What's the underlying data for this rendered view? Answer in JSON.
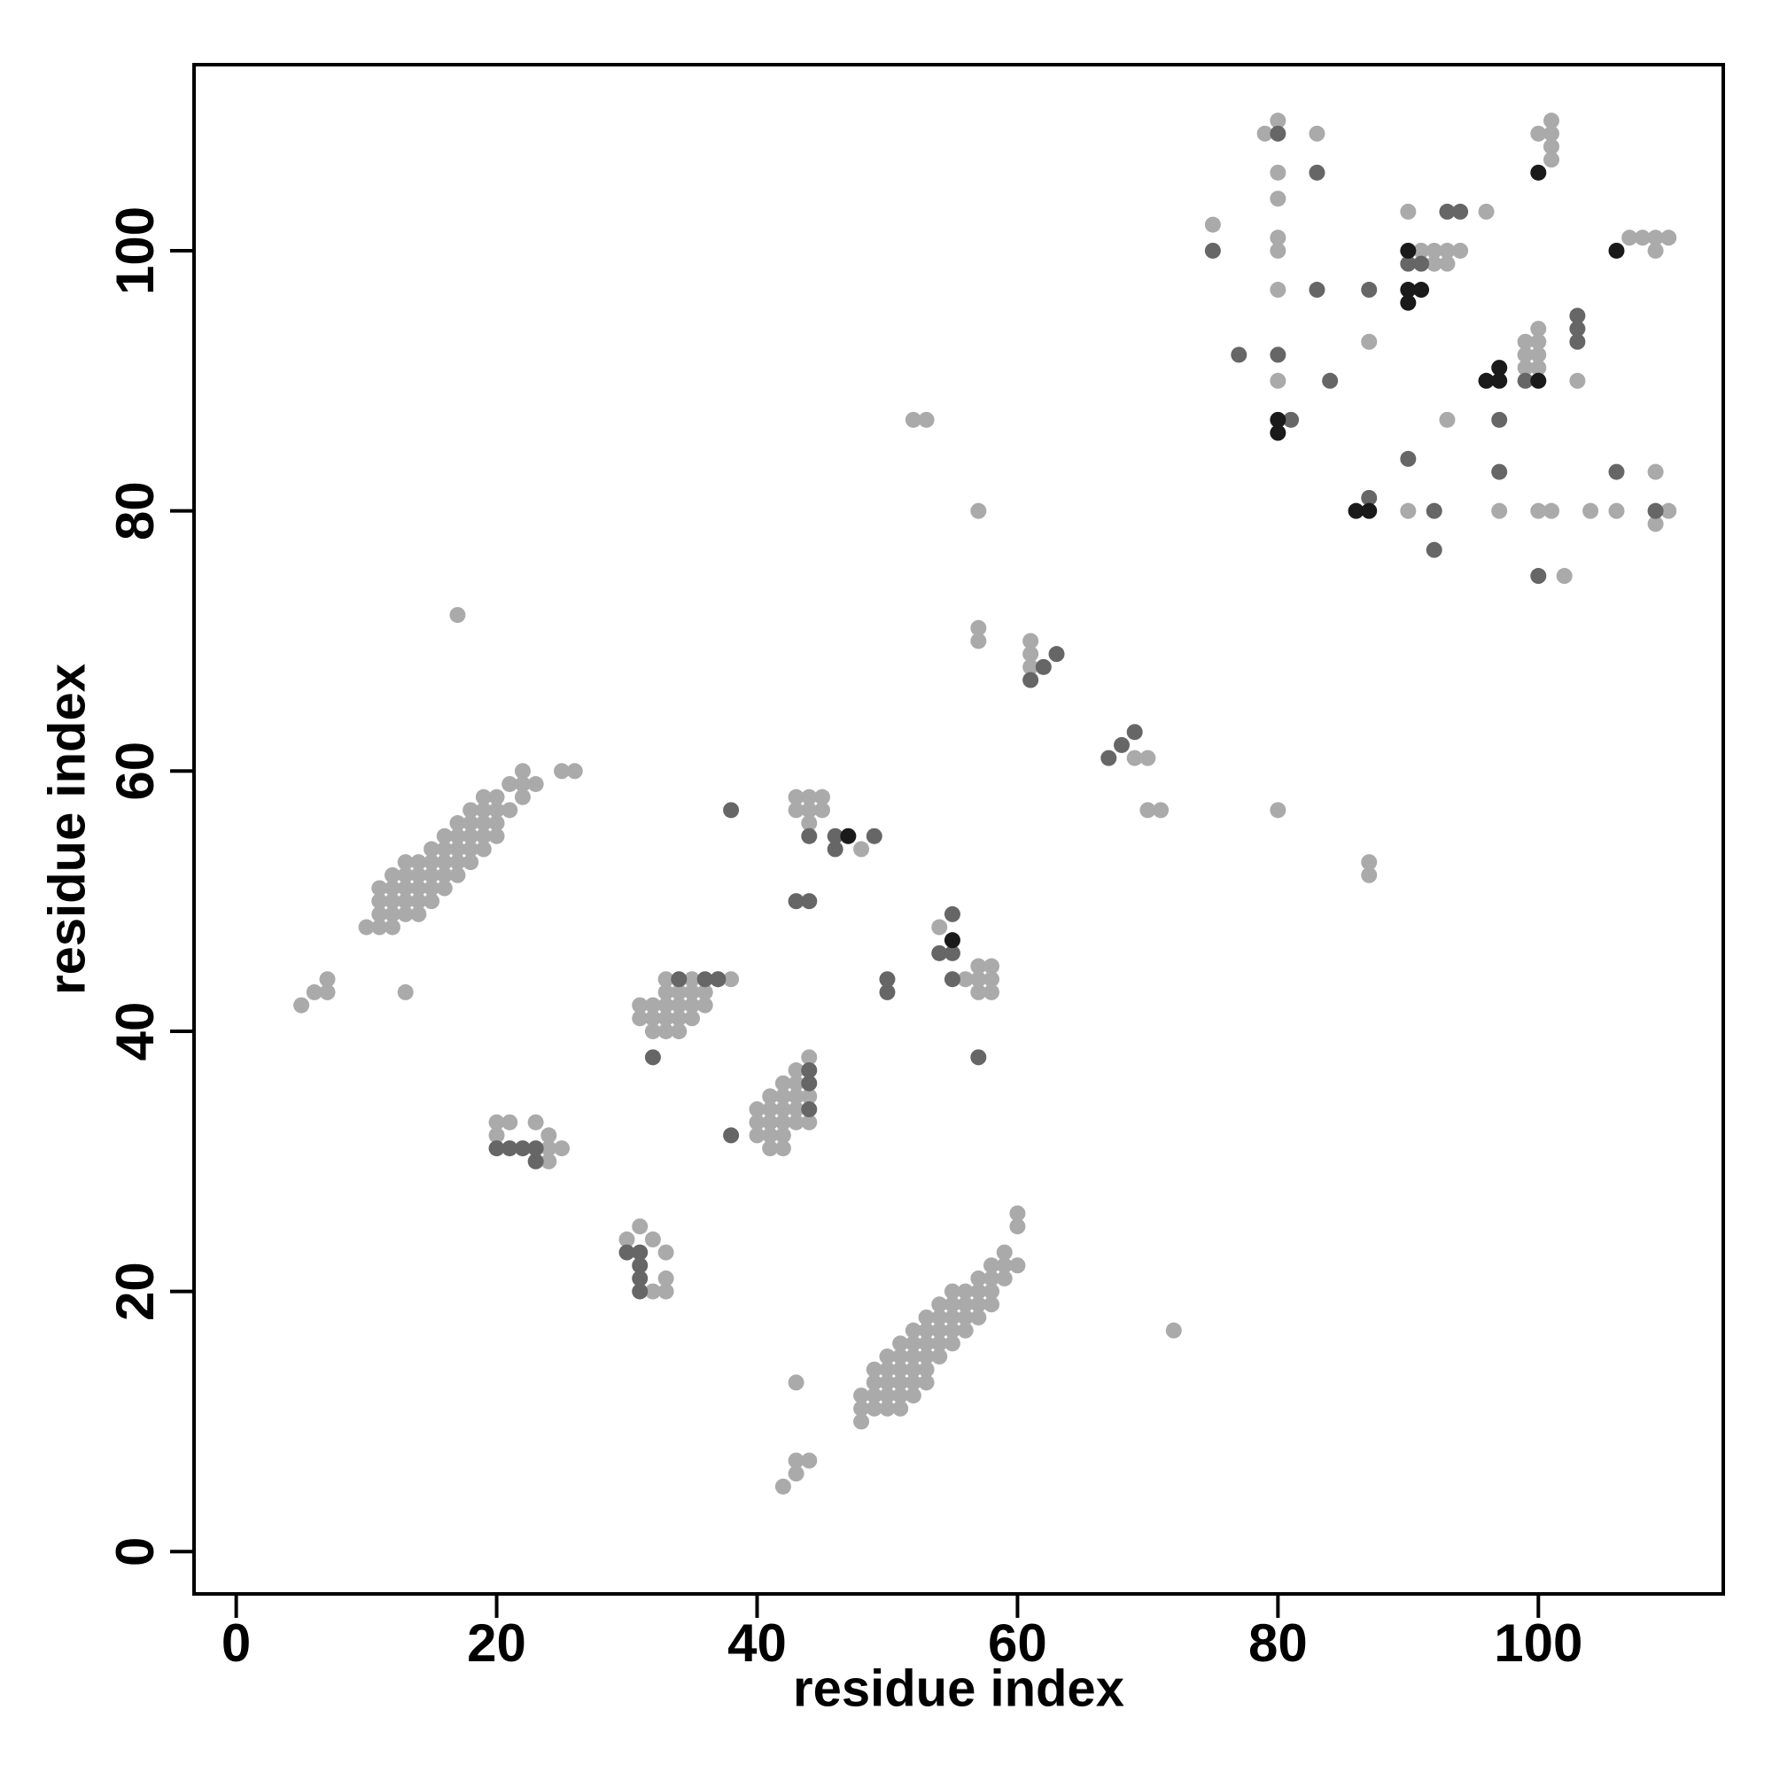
{
  "chart_data": {
    "type": "scatter",
    "xlabel": "residue index",
    "ylabel": "residue index",
    "xlim": [
      -3.24,
      114.2
    ],
    "ylim": [
      -3.25,
      114.3
    ],
    "xticks": [
      0,
      20,
      40,
      60,
      80,
      100
    ],
    "yticks": [
      0,
      20,
      40,
      60,
      80,
      100
    ],
    "series": [
      {
        "color": "#aaaaaa",
        "x": [
          79,
          80,
          80,
          80,
          80,
          80,
          80,
          80,
          83,
          75,
          87,
          90,
          91,
          92,
          93,
          94,
          92,
          93,
          96,
          100,
          101,
          101,
          101,
          101,
          107,
          108,
          109,
          110,
          109,
          99,
          100,
          100,
          99,
          100,
          99,
          100,
          103,
          93,
          90,
          97,
          100,
          101,
          104,
          106,
          109,
          110,
          109,
          102,
          52,
          53,
          57,
          57,
          57,
          61,
          61,
          61,
          69,
          70,
          70,
          71,
          80,
          87,
          87,
          17,
          10,
          11,
          12,
          11,
          12,
          13,
          14,
          11,
          12,
          13,
          14,
          15,
          11,
          12,
          13,
          14,
          15,
          16,
          12,
          13,
          14,
          15,
          16,
          17,
          13,
          14,
          15,
          16,
          17,
          18,
          15,
          16,
          17,
          18,
          19,
          16,
          17,
          18,
          19,
          20,
          17,
          18,
          19,
          20,
          18,
          19,
          20,
          21,
          19,
          20,
          22,
          21,
          22,
          23,
          22,
          25,
          26,
          5,
          6,
          7,
          7,
          13,
          31,
          32,
          33,
          34,
          35,
          36,
          31,
          32,
          33,
          34,
          35,
          32,
          33,
          34,
          33,
          34,
          35,
          36,
          33,
          35,
          37,
          38,
          40,
          41,
          42,
          43,
          40,
          41,
          42,
          43,
          44,
          40,
          41,
          42,
          41,
          42,
          41,
          42,
          43,
          44,
          42,
          43,
          43,
          44,
          20,
          21,
          23,
          20,
          24,
          24,
          25,
          24,
          30,
          31,
          32,
          33,
          33,
          32,
          33,
          43,
          44,
          45,
          43,
          44,
          45,
          44,
          48,
          54,
          56,
          57,
          58,
          57,
          58,
          57,
          58,
          72,
          43,
          43,
          44,
          43,
          42,
          48,
          48,
          48,
          49,
          49,
          49,
          49,
          50,
          50,
          50,
          50,
          50,
          51,
          51,
          51,
          51,
          51,
          51,
          52,
          52,
          52,
          52,
          52,
          52,
          53,
          53,
          53,
          53,
          53,
          53,
          54,
          54,
          54,
          54,
          54,
          55,
          55,
          55,
          55,
          55,
          56,
          56,
          56,
          56,
          57,
          57,
          57,
          57,
          58,
          58,
          58,
          58,
          59,
          59,
          59,
          60,
          60,
          60
        ],
        "y": [
          109,
          110,
          106,
          104,
          101,
          100,
          97,
          90,
          109,
          102,
          93,
          103,
          100,
          100,
          100,
          100,
          99,
          99,
          103,
          109,
          110,
          109,
          108,
          107,
          101,
          101,
          101,
          101,
          100,
          93,
          94,
          93,
          92,
          92,
          91,
          91,
          90,
          87,
          80,
          80,
          80,
          80,
          80,
          80,
          83,
          80,
          79,
          75,
          87,
          87,
          80,
          71,
          70,
          70,
          69,
          68,
          61,
          61,
          57,
          57,
          57,
          53,
          52,
          72,
          48,
          48,
          48,
          49,
          49,
          49,
          49,
          50,
          50,
          50,
          50,
          50,
          51,
          51,
          51,
          51,
          51,
          51,
          52,
          52,
          52,
          52,
          52,
          52,
          53,
          53,
          53,
          53,
          53,
          53,
          54,
          54,
          54,
          54,
          54,
          55,
          55,
          55,
          55,
          55,
          56,
          56,
          56,
          56,
          57,
          57,
          57,
          57,
          58,
          58,
          58,
          59,
          59,
          59,
          60,
          60,
          60,
          42,
          43,
          43,
          44,
          43,
          42,
          42,
          42,
          42,
          42,
          42,
          41,
          41,
          41,
          41,
          41,
          40,
          40,
          40,
          43,
          43,
          43,
          43,
          44,
          44,
          44,
          44,
          34,
          34,
          34,
          34,
          33,
          33,
          33,
          33,
          33,
          32,
          32,
          32,
          31,
          31,
          35,
          35,
          35,
          35,
          36,
          36,
          37,
          38,
          33,
          33,
          33,
          32,
          32,
          31,
          31,
          30,
          24,
          25,
          24,
          23,
          21,
          20,
          20,
          58,
          58,
          58,
          57,
          57,
          57,
          56,
          54,
          48,
          44,
          45,
          45,
          44,
          44,
          43,
          43,
          17,
          13,
          7,
          7,
          6,
          5,
          10,
          11,
          12,
          11,
          12,
          13,
          14,
          11,
          12,
          13,
          14,
          15,
          11,
          12,
          13,
          14,
          15,
          16,
          12,
          13,
          14,
          15,
          16,
          17,
          13,
          14,
          15,
          16,
          17,
          18,
          15,
          16,
          17,
          18,
          19,
          16,
          17,
          18,
          19,
          20,
          17,
          18,
          19,
          20,
          18,
          19,
          20,
          21,
          19,
          20,
          21,
          22,
          21,
          22,
          23,
          22,
          25,
          26
        ]
      },
      {
        "color": "#666666",
        "x": [
          80,
          83,
          75,
          83,
          87,
          80,
          77,
          84,
          81,
          87,
          90,
          92,
          92,
          97,
          97,
          100,
          106,
          109,
          93,
          94,
          90,
          91,
          99,
          103,
          103,
          103,
          61,
          62,
          63,
          67,
          68,
          69,
          38,
          44,
          46,
          46,
          49,
          43,
          44,
          55,
          54,
          55,
          55,
          50,
          50,
          57,
          34,
          36,
          37,
          32,
          44,
          44,
          44,
          38,
          20,
          21,
          22,
          23,
          23,
          30,
          31,
          31,
          31,
          31
        ],
        "y": [
          109,
          106,
          100,
          97,
          97,
          92,
          92,
          90,
          87,
          81,
          84,
          80,
          77,
          87,
          83,
          75,
          83,
          80,
          103,
          103,
          99,
          99,
          90,
          94,
          93,
          95,
          67,
          68,
          69,
          61,
          62,
          63,
          57,
          55,
          55,
          54,
          55,
          50,
          50,
          49,
          46,
          46,
          44,
          44,
          43,
          38,
          44,
          44,
          44,
          38,
          37,
          36,
          34,
          32,
          31,
          31,
          31,
          31,
          30,
          23,
          23,
          22,
          21,
          20
        ]
      },
      {
        "color": "#1a1a1a",
        "x": [
          80,
          80,
          100,
          106,
          90,
          90,
          90,
          91,
          96,
          97,
          97,
          100,
          86,
          87,
          47,
          55
        ],
        "y": [
          87,
          86,
          106,
          100,
          100,
          97,
          96,
          97,
          90,
          90,
          91,
          90,
          80,
          80,
          55,
          47
        ]
      }
    ]
  }
}
